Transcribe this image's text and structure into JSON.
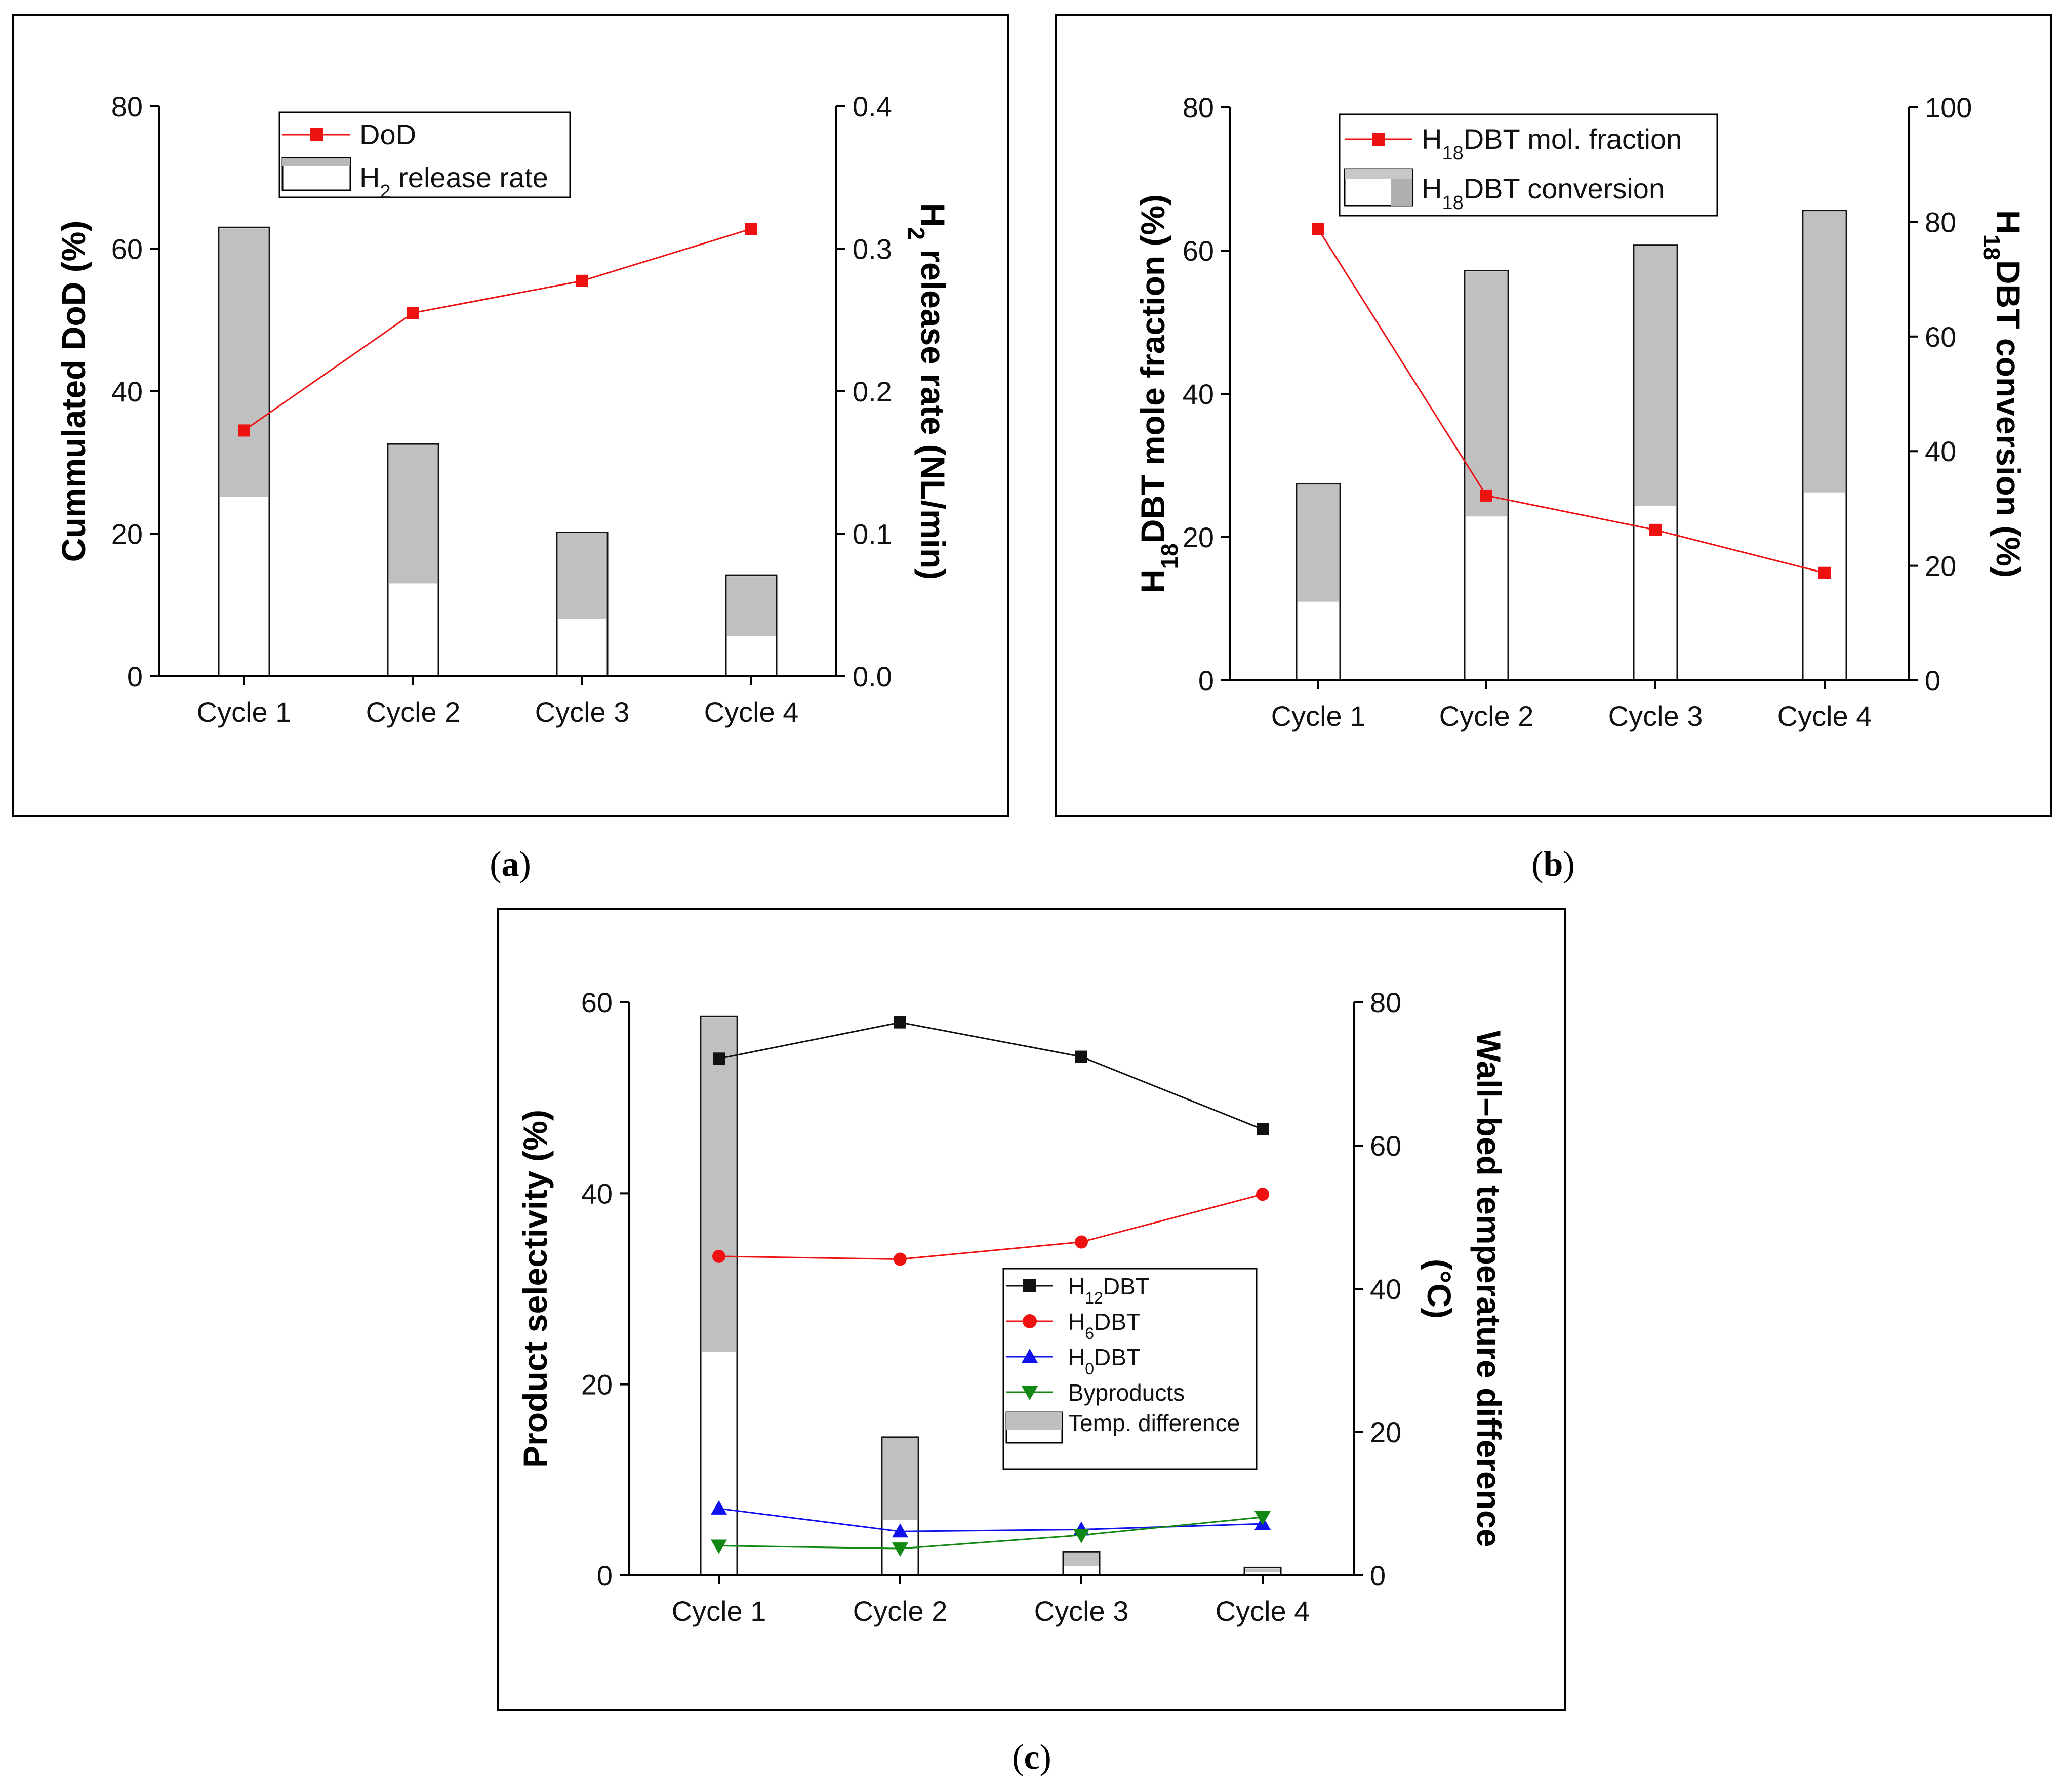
{
  "chart_data": [
    {
      "id": "a",
      "type": "bar+line",
      "caption": "a",
      "categories": [
        "Cycle 1",
        "Cycle 2",
        "Cycle 3",
        "Cycle 4"
      ],
      "ylabel_left": "Cummulated DoD (%)",
      "ylabel_right": "H2 release rate (NL/min)",
      "ylabel_right_parts": [
        "H",
        "2",
        " release rate (NL/min)"
      ],
      "ylim_left": [
        0,
        80
      ],
      "yticks_left": [
        "0",
        "20",
        "40",
        "60",
        "80"
      ],
      "ylim_right": [
        0,
        0.4
      ],
      "yticks_right": [
        "0.0",
        "0.1",
        "0.2",
        "0.3",
        "0.4"
      ],
      "legend": [
        {
          "label": "DoD",
          "kind": "line",
          "color": "#ee1111"
        },
        {
          "label_parts": [
            "H",
            "2",
            " release rate"
          ],
          "kind": "bar"
        }
      ],
      "series": [
        {
          "name": "DoD",
          "axis": "left",
          "color": "#ee1111",
          "values": [
            34.5,
            51,
            55.5,
            62.8
          ]
        },
        {
          "name": "H2 release rate",
          "axis": "right",
          "values": [
            0.315,
            0.163,
            0.101,
            0.071
          ]
        }
      ]
    },
    {
      "id": "b",
      "type": "bar+line",
      "caption": "b",
      "categories": [
        "Cycle 1",
        "Cycle 2",
        "Cycle 3",
        "Cycle 4"
      ],
      "ylabel_left_parts": [
        "H",
        "18",
        "DBT mole fraction (%)"
      ],
      "ylabel_right_parts": [
        "H",
        "18",
        "DBT conversion (%)"
      ],
      "ylim_left": [
        0,
        80
      ],
      "yticks_left": [
        "0",
        "20",
        "40",
        "60",
        "80"
      ],
      "ylim_right": [
        0,
        100
      ],
      "yticks_right": [
        "0",
        "20",
        "40",
        "60",
        "80",
        "100"
      ],
      "legend": [
        {
          "label_parts": [
            "H",
            "18",
            "DBT mol. fraction"
          ],
          "kind": "line",
          "color": "#ee1111"
        },
        {
          "label_parts": [
            "H",
            "18",
            "DBT conversion"
          ],
          "kind": "bar"
        }
      ],
      "series": [
        {
          "name": "H18DBT mol. fraction",
          "axis": "left",
          "color": "#ee1111",
          "values": [
            63,
            25.8,
            21,
            15
          ]
        },
        {
          "name": "H18DBT conversion",
          "axis": "right",
          "values": [
            34.3,
            71.5,
            76,
            82
          ]
        }
      ]
    },
    {
      "id": "c",
      "type": "bar+line",
      "caption": "c",
      "categories": [
        "Cycle 1",
        "Cycle 2",
        "Cycle 3",
        "Cycle 4"
      ],
      "ylabel_left": "Product selectivity (%)",
      "ylabel_right": "Wall–bed temperature difference (°C)",
      "ylabel_right_line1": "Wall–bed temperature difference",
      "ylabel_right_line2": "(°C)",
      "ylim_left": [
        0,
        60
      ],
      "yticks_left": [
        "0",
        "20",
        "40",
        "60"
      ],
      "ylim_right": [
        0,
        80
      ],
      "yticks_right": [
        "0",
        "20",
        "40",
        "60",
        "80"
      ],
      "legend": [
        {
          "label_parts": [
            "H",
            "12",
            "DBT"
          ],
          "kind": "line",
          "marker": "square",
          "color": "#111111"
        },
        {
          "label_parts": [
            "H",
            "6",
            "DBT"
          ],
          "kind": "line",
          "marker": "circle",
          "color": "#ee1111"
        },
        {
          "label_parts": [
            "H",
            "0",
            "DBT"
          ],
          "kind": "line",
          "marker": "triangle-up",
          "color": "#1111ee"
        },
        {
          "label": "Byproducts",
          "kind": "line",
          "marker": "triangle-down",
          "color": "#118811"
        },
        {
          "label": "Temp. difference",
          "kind": "bar"
        }
      ],
      "series": [
        {
          "name": "H12DBT",
          "axis": "left",
          "marker": "square",
          "color": "#111111",
          "values": [
            54.1,
            57.9,
            54.3,
            46.7
          ]
        },
        {
          "name": "H6DBT",
          "axis": "left",
          "marker": "circle",
          "color": "#ee1111",
          "values": [
            33.4,
            33.1,
            34.9,
            39.9
          ]
        },
        {
          "name": "H0DBT",
          "axis": "left",
          "marker": "triangle-up",
          "color": "#1111ee",
          "values": [
            7.0,
            4.6,
            4.8,
            5.4
          ]
        },
        {
          "name": "Byproducts",
          "axis": "left",
          "marker": "triangle-down",
          "color": "#118811",
          "values": [
            3.1,
            2.8,
            4.2,
            6.1
          ]
        },
        {
          "name": "Temp. difference",
          "axis": "right",
          "values": [
            78,
            19.3,
            3.3,
            1.1
          ]
        }
      ]
    }
  ]
}
